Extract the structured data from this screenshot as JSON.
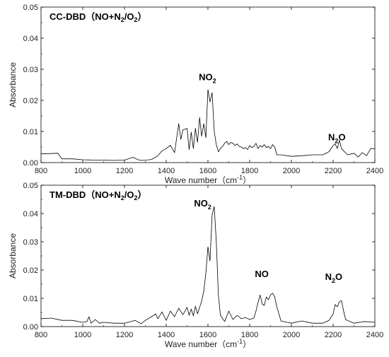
{
  "chart_data": [
    {
      "type": "line",
      "title": {
        "main": "CC-DBD",
        "paren_open": "（",
        "a": "NO+N",
        "a_sub": "2",
        "b": "/O",
        "b_sub": "2",
        "paren_close": "）"
      },
      "xlabel": {
        "main": "Wave number（cm",
        "sup": "-1",
        "close": "）"
      },
      "ylabel": "Absorbance",
      "xlim": [
        800,
        2400
      ],
      "ylim": [
        0,
        0.05
      ],
      "xticks": [
        "800",
        "1000",
        "1200",
        "1400",
        "1600",
        "1800",
        "2000",
        "2200",
        "2400"
      ],
      "yticks": [
        "0.00",
        "0.01",
        "0.02",
        "0.03",
        "0.04",
        "0.05"
      ],
      "annotations": [
        {
          "label": "NO",
          "sub": "2",
          "x": 1598,
          "y": 0.0265
        },
        {
          "label": "N",
          "sub": "2",
          "tail": "O",
          "x": 2218,
          "y": 0.0072
        }
      ],
      "series": [
        {
          "x": [
            800,
            880,
            900,
            950,
            1000,
            1060,
            1100,
            1150,
            1200,
            1240,
            1270,
            1290,
            1330,
            1360,
            1380,
            1400,
            1420,
            1440,
            1460,
            1470,
            1480,
            1500,
            1510,
            1520,
            1530,
            1540,
            1550,
            1560,
            1570,
            1580,
            1590,
            1600,
            1610,
            1620,
            1630,
            1640,
            1650,
            1660,
            1670,
            1680,
            1690,
            1700,
            1710,
            1720,
            1730,
            1740,
            1750,
            1760,
            1770,
            1780,
            1790,
            1800,
            1810,
            1820,
            1830,
            1840,
            1850,
            1860,
            1870,
            1880,
            1890,
            1900,
            1910,
            1920,
            1930,
            1950,
            2000,
            2050,
            2100,
            2150,
            2180,
            2200,
            2210,
            2220,
            2230,
            2240,
            2250,
            2270,
            2300,
            2320,
            2340,
            2360,
            2380,
            2400
          ],
          "y": [
            0.0028,
            0.003,
            0.0012,
            0.0012,
            0.0009,
            0.0008,
            0.0008,
            0.0007,
            0.0008,
            0.0017,
            0.0008,
            0.0007,
            0.001,
            0.0022,
            0.0038,
            0.0045,
            0.0056,
            0.0032,
            0.0125,
            0.0075,
            0.0105,
            0.011,
            0.0042,
            0.0098,
            0.0045,
            0.011,
            0.0065,
            0.0145,
            0.0085,
            0.0125,
            0.008,
            0.0235,
            0.0195,
            0.0225,
            0.01,
            0.0058,
            0.0035,
            0.0045,
            0.0052,
            0.0062,
            0.0068,
            0.0058,
            0.0065,
            0.0062,
            0.0055,
            0.006,
            0.0052,
            0.005,
            0.0045,
            0.0048,
            0.0042,
            0.0055,
            0.0048,
            0.0052,
            0.0062,
            0.0045,
            0.0055,
            0.005,
            0.0058,
            0.0048,
            0.0052,
            0.0045,
            0.0058,
            0.005,
            0.0025,
            0.0025,
            0.002,
            0.0022,
            0.0025,
            0.0025,
            0.0035,
            0.0055,
            0.006,
            0.0045,
            0.0072,
            0.0045,
            0.0038,
            0.0025,
            0.003,
            0.0018,
            0.0032,
            0.0022,
            0.0045,
            0.0045
          ]
        }
      ]
    },
    {
      "type": "line",
      "title": {
        "main": "TM-DBD",
        "paren_open": "（",
        "a": "NO+N",
        "a_sub": "2",
        "b": "/O",
        "b_sub": "2",
        "paren_close": "）"
      },
      "xlabel": {
        "main": "Wave number（cm",
        "sup": "-1",
        "close": "）"
      },
      "ylabel": "Absorbance",
      "xlim": [
        800,
        2400
      ],
      "ylim": [
        0,
        0.05
      ],
      "xticks": [
        "800",
        "1000",
        "1200",
        "1400",
        "1600",
        "1800",
        "2000",
        "2200",
        "2400"
      ],
      "yticks": [
        "0.00",
        "0.01",
        "0.02",
        "0.03",
        "0.04",
        "0.05"
      ],
      "annotations": [
        {
          "label": "NO",
          "sub": "2",
          "x": 1575,
          "y": 0.0425
        },
        {
          "label": "NO",
          "x": 1858,
          "y": 0.0175
        },
        {
          "label": "N",
          "sub": "2",
          "tail": "O",
          "x": 2203,
          "y": 0.0165
        }
      ],
      "series": [
        {
          "x": [
            800,
            850,
            900,
            950,
            1000,
            1020,
            1030,
            1040,
            1060,
            1080,
            1100,
            1150,
            1200,
            1250,
            1280,
            1300,
            1330,
            1350,
            1360,
            1380,
            1400,
            1420,
            1440,
            1460,
            1480,
            1500,
            1510,
            1520,
            1530,
            1540,
            1550,
            1560,
            1570,
            1580,
            1590,
            1600,
            1610,
            1620,
            1630,
            1640,
            1650,
            1660,
            1680,
            1700,
            1720,
            1740,
            1760,
            1780,
            1800,
            1820,
            1830,
            1840,
            1850,
            1860,
            1870,
            1880,
            1890,
            1900,
            1910,
            1920,
            1930,
            1950,
            1980,
            2000,
            2050,
            2100,
            2150,
            2180,
            2200,
            2210,
            2220,
            2230,
            2240,
            2250,
            2260,
            2280,
            2300,
            2350,
            2400
          ],
          "y": [
            0.0028,
            0.003,
            0.0022,
            0.0022,
            0.0015,
            0.0018,
            0.0035,
            0.0012,
            0.0025,
            0.0012,
            0.0015,
            0.0012,
            0.0012,
            0.0022,
            0.001,
            0.0022,
            0.0035,
            0.0045,
            0.0028,
            0.0052,
            0.0022,
            0.0055,
            0.0035,
            0.0065,
            0.0042,
            0.0068,
            0.004,
            0.0062,
            0.0038,
            0.0072,
            0.0045,
            0.0068,
            0.009,
            0.0125,
            0.019,
            0.0282,
            0.0232,
            0.0395,
            0.0425,
            0.03,
            0.011,
            0.004,
            0.0018,
            0.0055,
            0.0025,
            0.004,
            0.0028,
            0.0032,
            0.0025,
            0.003,
            0.0055,
            0.0085,
            0.0112,
            0.008,
            0.0075,
            0.0105,
            0.0095,
            0.0112,
            0.0118,
            0.0105,
            0.007,
            0.002,
            0.0015,
            0.0012,
            0.002,
            0.0012,
            0.0012,
            0.0022,
            0.0045,
            0.0078,
            0.007,
            0.0088,
            0.0092,
            0.0055,
            0.0025,
            0.0018,
            0.0012,
            0.0018,
            0.0015
          ]
        }
      ]
    }
  ]
}
